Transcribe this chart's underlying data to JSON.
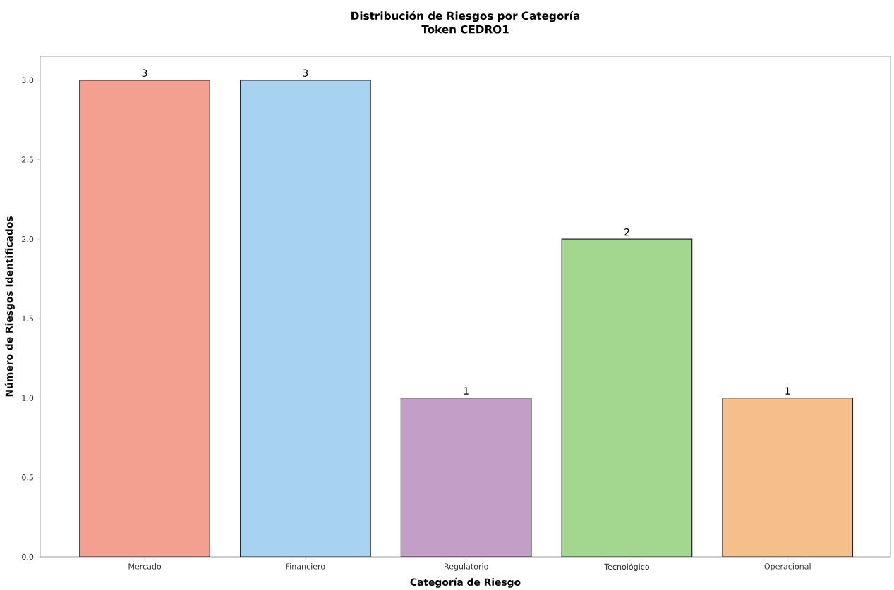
{
  "chart_data": {
    "type": "bar",
    "title": "Distribución de Riesgos por Categoría",
    "subtitle": "Token CEDRO1",
    "xlabel": "Categoría de Riesgo",
    "ylabel": "Número de Riesgos Identificados",
    "categories": [
      "Mercado",
      "Financiero",
      "Regulatorio",
      "Tecnológico",
      "Operacional"
    ],
    "values": [
      3,
      3,
      1,
      2,
      1
    ],
    "colors": [
      "#f4a090",
      "#a8d3f0",
      "#c39fc7",
      "#a3d78f",
      "#f5bf8c"
    ],
    "ylim": [
      0,
      3.15
    ],
    "yticks": [
      {
        "value": 0,
        "label": "0.0"
      },
      {
        "value": 0.5,
        "label": "0.5"
      },
      {
        "value": 1,
        "label": "1.0"
      },
      {
        "value": 1.5,
        "label": "1.5"
      },
      {
        "value": 2,
        "label": "2.0"
      },
      {
        "value": 2.5,
        "label": "2.5"
      },
      {
        "value": 3,
        "label": "3.0"
      }
    ],
    "data_labels": true,
    "grid": false
  }
}
